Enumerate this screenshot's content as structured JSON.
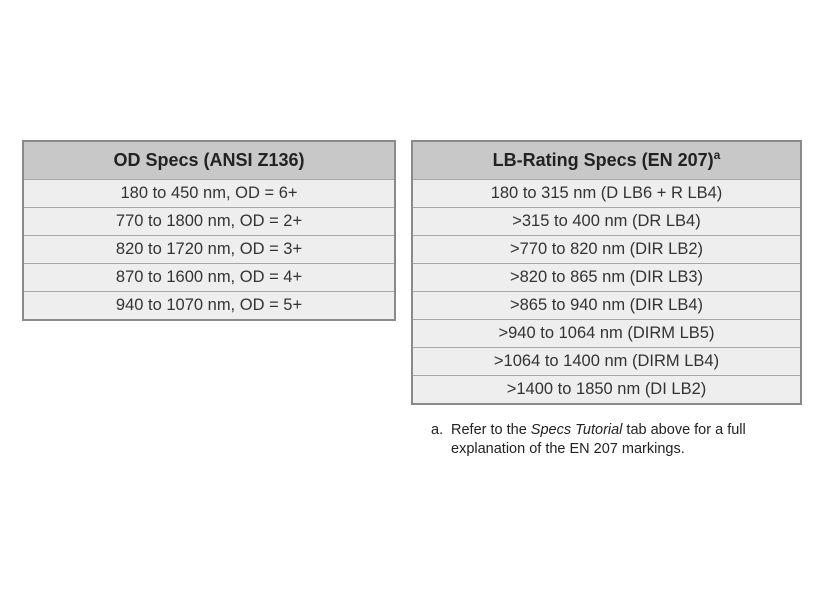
{
  "od_table": {
    "header": "OD Specs (ANSI Z136)",
    "rows": [
      "180 to 450 nm, OD = 6+",
      "770 to 1800 nm, OD = 2+",
      "820 to 1720 nm, OD = 3+",
      "870 to 1600 nm, OD = 4+",
      "940 to 1070 nm, OD = 5+"
    ]
  },
  "lb_table": {
    "header": "LB-Rating Specs (EN 207)",
    "header_footnote_marker": "a",
    "rows": [
      "180 to 315 nm (D LB6 + R LB4)",
      ">315 to 400 nm (DR LB4)",
      ">770 to 820 nm (DIR LB2)",
      ">820 to 865 nm (DIR LB3)",
      ">865 to 940 nm (DIR LB4)",
      ">940 to 1064 nm (DIRM LB5)",
      ">1064 to 1400 nm (DIRM LB4)",
      ">1400 to 1850 nm (DI LB2)"
    ]
  },
  "footnote": {
    "letter": "a.",
    "text_before": "Refer to the ",
    "emphasis": "Specs Tutorial",
    "text_after": " tab above for a full",
    "continuation": "explanation of the EN 207 markings."
  }
}
